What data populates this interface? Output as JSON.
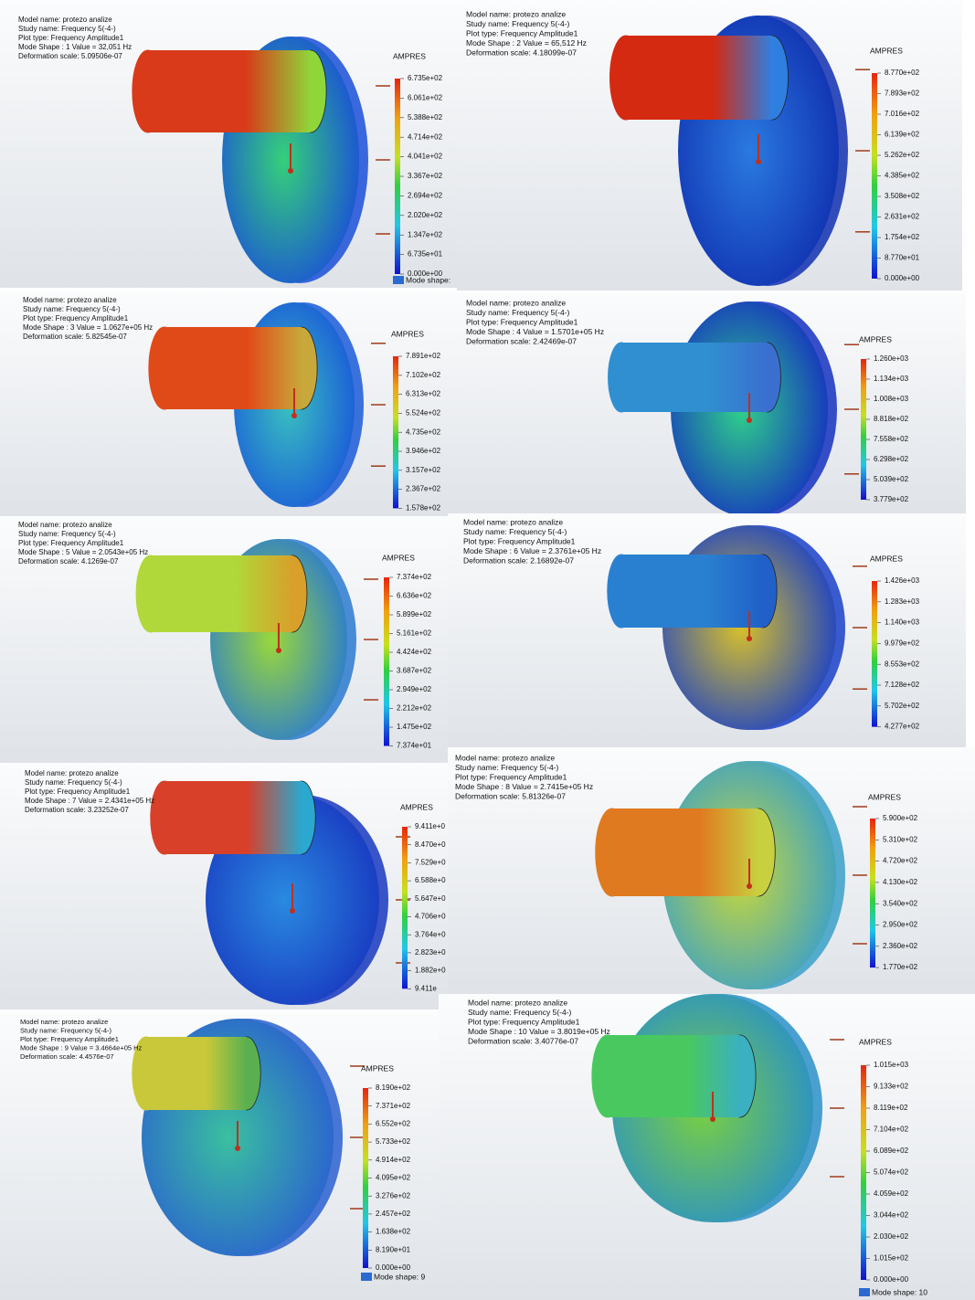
{
  "panels": [
    {
      "header": [
        "Model name: protezo analize",
        "Study name: Frequency 5(-4-)",
        "Plot type: Frequency Amplitude1",
        "Mode Shape : 1  Value =      32,051 Hz",
        "Deformation scale: 5.09506e-07"
      ],
      "legend_title": "AMPRES",
      "legend_labels": [
        "6.735e+02",
        "6.061e+02",
        "5.388e+02",
        "4.714e+02",
        "4.041e+02",
        "3.367e+02",
        "2.694e+02",
        "2.020e+02",
        "1.347e+02",
        "6.735e+01",
        "0.000e+00"
      ],
      "footer": "Mode shape:"
    },
    {
      "header": [
        "Model name: protezo analize",
        "Study name: Frequency 5(-4-)",
        "Plot type: Frequency Amplitude1",
        "Mode Shape : 2  Value =      65,512 Hz",
        "Deformation scale: 4.18099e-07"
      ],
      "legend_title": "AMPRES",
      "legend_labels": [
        "8.770e+02",
        "7.893e+02",
        "7.016e+02",
        "6.139e+02",
        "5.262e+02",
        "4.385e+02",
        "3.508e+02",
        "2.631e+02",
        "1.754e+02",
        "8.770e+01",
        "0.000e+00"
      ]
    },
    {
      "header": [
        "Model name: protezo analize",
        "Study name: Frequency 5(-4-)",
        "Plot type: Frequency Amplitude1",
        "Mode Shape : 3  Value =  1.0627e+05 Hz",
        "Deformation scale: 5.82545e-07"
      ],
      "legend_title": "AMPRES",
      "legend_labels": [
        "7.891e+02",
        "7.102e+02",
        "6.313e+02",
        "5.524e+02",
        "4.735e+02",
        "3.946e+02",
        "3.157e+02",
        "2.367e+02",
        "1.578e+02"
      ]
    },
    {
      "header": [
        "Model name: protezo analize",
        "Study name: Frequency 5(-4-)",
        "Plot type: Frequency Amplitude1",
        "Mode Shape : 4  Value =  1.5701e+05 Hz",
        "Deformation scale: 2.42469e-07"
      ],
      "legend_title": "AMPRES",
      "legend_labels": [
        "1.260e+03",
        "1.134e+03",
        "1.008e+03",
        "8.818e+02",
        "7.558e+02",
        "6.298e+02",
        "5.039e+02",
        "3.779e+02"
      ]
    },
    {
      "header": [
        "Model name: protezo analize",
        "Study name: Frequency 5(-4-)",
        "Plot type: Frequency Amplitude1",
        "Mode Shape : 5  Value =  2.0543e+05 Hz",
        "Deformation scale: 4.1269e-07"
      ],
      "legend_title": "AMPRES",
      "legend_labels": [
        "7.374e+02",
        "6.636e+02",
        "5.899e+02",
        "5.161e+02",
        "4.424e+02",
        "3.687e+02",
        "2.949e+02",
        "2.212e+02",
        "1.475e+02",
        "7.374e+01"
      ]
    },
    {
      "header": [
        "Model name: protezo analize",
        "Study name: Frequency 5(-4-)",
        "Plot type: Frequency Amplitude1",
        "Mode Shape : 6  Value =  2.3761e+05 Hz",
        "Deformation scale: 2.16892e-07"
      ],
      "legend_title": "AMPRES",
      "legend_labels": [
        "1.426e+03",
        "1.283e+03",
        "1.140e+03",
        "9.979e+02",
        "8.553e+02",
        "7.128e+02",
        "5.702e+02",
        "4.277e+02"
      ]
    },
    {
      "header": [
        "Model name: protezo analize",
        "Study name: Frequency 5(-4-)",
        "Plot type: Frequency Amplitude1",
        "Mode Shape : 7  Value =  2.4341e+05 Hz",
        "Deformation scale: 3.23252e-07"
      ],
      "legend_title": "AMPRES",
      "legend_labels": [
        "9.411e+0",
        "8.470e+0",
        "7.529e+0",
        "6.588e+0",
        "5.647e+0",
        "4.706e+0",
        "3.764e+0",
        "2.823e+0",
        "1.882e+0",
        "9.411e"
      ]
    },
    {
      "header": [
        "Model name: protezo analize",
        "Study name: Frequency 5(-4-)",
        "Plot type: Frequency Amplitude1",
        "Mode Shape : 8  Value =  2.7415e+05 Hz",
        "Deformation scale: 5.81326e-07"
      ],
      "legend_title": "AMPRES",
      "legend_labels": [
        "5.900e+02",
        "5.310e+02",
        "4.720e+02",
        "4.130e+02",
        "3.540e+02",
        "2.950e+02",
        "2.360e+02",
        "1.770e+02"
      ]
    },
    {
      "header": [
        "Model name: protezo analize",
        "Study name: Frequency 5(-4-)",
        "Plot type: Frequency Amplitude1",
        "Mode Shape : 9  Value =  3.4664e+05 Hz",
        "Deformation scale: 4.4576e-07"
      ],
      "legend_title": "AMPRES",
      "legend_labels": [
        "8.190e+02",
        "7.371e+02",
        "6.552e+02",
        "5.733e+02",
        "4.914e+02",
        "4.095e+02",
        "3.276e+02",
        "2.457e+02",
        "1.638e+02",
        "8.190e+01",
        "0.000e+00"
      ],
      "footer": "Mode shape: 9"
    },
    {
      "header": [
        "Model name: protezo analize",
        "Study name: Frequency 5(-4-)",
        "Plot type: Frequency Amplitude1",
        "Mode Shape : 10  Value =  3.8019e+05 Hz",
        "Deformation scale: 3.40776e-07"
      ],
      "legend_title": "AMPRES",
      "legend_labels": [
        "1.015e+03",
        "9.133e+02",
        "8.119e+02",
        "7.104e+02",
        "6.089e+02",
        "5.074e+02",
        "4.059e+02",
        "3.044e+02",
        "2.030e+02",
        "1.015e+02",
        "0.000e+00"
      ],
      "footer": "Mode shape: 10"
    }
  ]
}
